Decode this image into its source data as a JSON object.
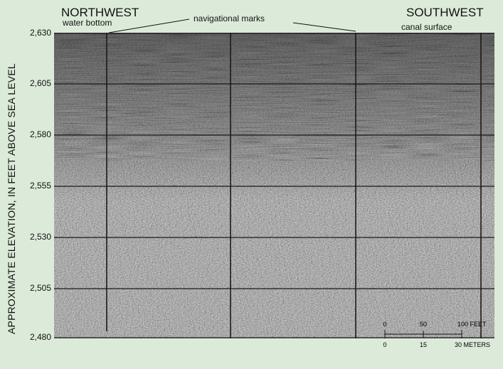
{
  "directions": {
    "left": "NORTHWEST",
    "right": "SOUTHWEST"
  },
  "annotations": {
    "water_bottom": "water bottom",
    "navigational_marks": "navigational marks",
    "canal_surface": "canal surface"
  },
  "y_axis": {
    "title": "APPROXIMATE ELEVATION, IN FEET ABOVE SEA LEVEL",
    "ticks": [
      "2,630",
      "2,605",
      "2,580",
      "2,555",
      "2,530",
      "2,505",
      "2,480"
    ],
    "range": [
      2480,
      2630
    ]
  },
  "scale_bar": {
    "feet": {
      "ticks": [
        "0",
        "50",
        "100 FEET"
      ]
    },
    "meters": {
      "ticks": [
        "0",
        "15",
        "30 METERS"
      ]
    }
  },
  "colors": {
    "background": "#dcebd9",
    "profile_gray": "#8a8a8a",
    "marks": "#1a1a1a"
  }
}
